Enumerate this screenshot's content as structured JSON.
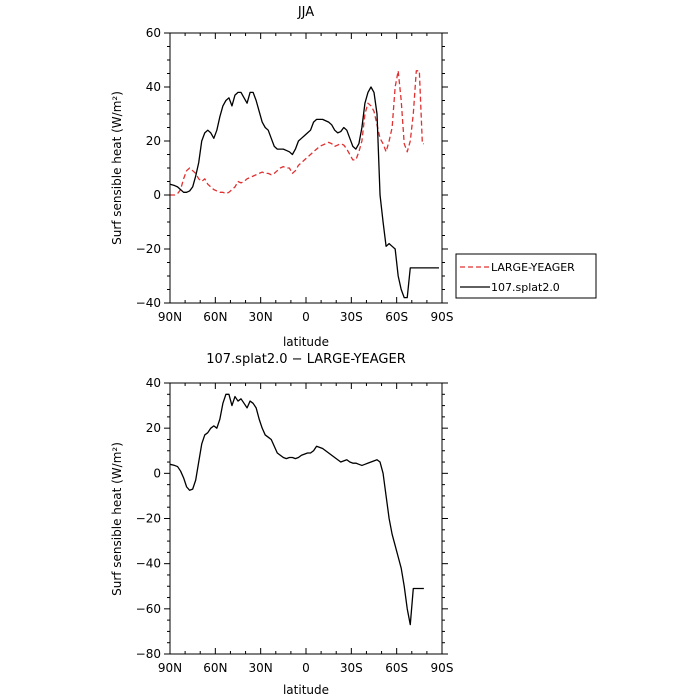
{
  "chart_data": [
    {
      "type": "line",
      "title": "JJA",
      "xlabel": "latitude",
      "ylabel": "Surf sensible heat (W/m²)",
      "xlim": [
        -90,
        90
      ],
      "ylim": [
        -40,
        60
      ],
      "xticks": [
        -90,
        -60,
        -30,
        0,
        30,
        60,
        90
      ],
      "xtick_labels": [
        "90N",
        "60N",
        "30N",
        "0",
        "30S",
        "60S",
        "90S"
      ],
      "yticks": [
        -40,
        -20,
        0,
        20,
        40,
        60
      ],
      "ytick_labels": [
        "−40",
        "−20",
        "0",
        "20",
        "40",
        "60"
      ],
      "legend": {
        "placement": "right"
      },
      "series": [
        {
          "name": "LARGE-YEAGER",
          "color": "#e03030",
          "dash": "dashed",
          "x": [
            -90,
            -87,
            -85,
            -83,
            -81,
            -79,
            -77,
            -75,
            -73,
            -71,
            -69,
            -67,
            -65,
            -63,
            -61,
            -59,
            -57,
            -55,
            -53,
            -51,
            -49,
            -47,
            -45,
            -43,
            -41,
            -39,
            -37,
            -35,
            -33,
            -31,
            -29,
            -27,
            -25,
            -23,
            -21,
            -19,
            -17,
            -15,
            -13,
            -11,
            -9,
            -7,
            -5,
            -3,
            -1,
            1,
            3,
            5,
            7,
            9,
            11,
            13,
            15,
            17,
            19,
            21,
            23,
            25,
            27,
            29,
            31,
            33,
            35,
            37,
            39,
            41,
            43,
            45,
            47,
            49,
            51,
            53,
            55,
            57,
            59,
            61,
            63,
            65,
            67,
            69,
            71,
            73,
            75,
            77,
            78
          ],
          "y": [
            0,
            0,
            0.5,
            2,
            6,
            9,
            10,
            9,
            8,
            6,
            5,
            6,
            4,
            3,
            2,
            1.5,
            1,
            1,
            0.5,
            1,
            2,
            3,
            5,
            4.5,
            5,
            6,
            6.5,
            7,
            7.5,
            8,
            8.5,
            8,
            8,
            7.5,
            8,
            9,
            10,
            10.5,
            10,
            10,
            8,
            9,
            11,
            12,
            13,
            14,
            15,
            16,
            17,
            18,
            18.5,
            19,
            19.5,
            19,
            18,
            18.5,
            19,
            18.5,
            17,
            15,
            13,
            13,
            16,
            20,
            30,
            34,
            33,
            31,
            26,
            21,
            19,
            16,
            20,
            25,
            40,
            46,
            35,
            19,
            16,
            20,
            30,
            46,
            46,
            19,
            19
          ]
        },
        {
          "name": "107.splat2.0",
          "color": "#000000",
          "dash": "solid",
          "x": [
            -90,
            -87,
            -85,
            -83,
            -81,
            -79,
            -77,
            -75,
            -73,
            -71,
            -69,
            -67,
            -65,
            -63,
            -61,
            -59,
            -57,
            -55,
            -53,
            -51,
            -49,
            -47,
            -45,
            -43,
            -41,
            -39,
            -37,
            -35,
            -33,
            -31,
            -29,
            -27,
            -25,
            -23,
            -21,
            -19,
            -17,
            -15,
            -13,
            -11,
            -9,
            -7,
            -5,
            -3,
            -1,
            1,
            3,
            5,
            7,
            9,
            11,
            13,
            15,
            17,
            19,
            21,
            23,
            25,
            27,
            29,
            31,
            33,
            35,
            37,
            39,
            41,
            43,
            45,
            47,
            49,
            51,
            53,
            55,
            57,
            59,
            61,
            63,
            65,
            67,
            69,
            71,
            73,
            75,
            77,
            79,
            81,
            83,
            85,
            87,
            88
          ],
          "y": [
            4,
            3.5,
            3,
            2,
            1,
            1,
            1.5,
            3,
            7,
            12,
            20,
            23,
            24,
            23,
            21,
            24,
            29,
            33,
            35,
            36,
            33,
            37,
            38,
            38,
            36,
            34,
            38,
            38,
            35,
            31,
            27,
            25,
            24,
            21,
            18,
            17,
            17,
            17,
            16.5,
            16,
            15,
            17,
            20,
            21,
            22,
            23,
            24,
            27,
            28,
            28,
            28,
            27.5,
            27,
            26,
            24,
            23,
            23.5,
            25,
            24,
            21,
            18,
            17,
            19,
            25,
            34,
            38,
            40,
            38,
            30,
            0,
            -10,
            -19,
            -18,
            -19,
            -20,
            -30,
            -35,
            -38,
            -38,
            -27,
            -27,
            -27,
            -27,
            -27,
            -27,
            -27,
            -27,
            -27,
            -27,
            -27
          ]
        }
      ]
    },
    {
      "type": "line",
      "title": "107.splat2.0 − LARGE-YEAGER",
      "xlabel": "latitude",
      "ylabel": "Surf sensible heat (W/m²)",
      "xlim": [
        -90,
        90
      ],
      "ylim": [
        -80,
        40
      ],
      "xticks": [
        -90,
        -60,
        -30,
        0,
        30,
        60,
        90
      ],
      "xtick_labels": [
        "90N",
        "60N",
        "30N",
        "0",
        "30S",
        "60S",
        "90S"
      ],
      "yticks": [
        -80,
        -60,
        -40,
        -20,
        0,
        20,
        40
      ],
      "ytick_labels": [
        "−80",
        "−60",
        "−40",
        "−20",
        "0",
        "20",
        "40"
      ],
      "series": [
        {
          "color": "#000000",
          "dash": "solid",
          "x": [
            -90,
            -87,
            -85,
            -83,
            -81,
            -79,
            -77,
            -75,
            -73,
            -71,
            -69,
            -67,
            -65,
            -63,
            -61,
            -59,
            -57,
            -55,
            -53,
            -51,
            -49,
            -47,
            -45,
            -43,
            -41,
            -39,
            -37,
            -35,
            -33,
            -31,
            -29,
            -27,
            -25,
            -23,
            -21,
            -19,
            -17,
            -15,
            -13,
            -11,
            -9,
            -7,
            -5,
            -3,
            -1,
            1,
            3,
            5,
            7,
            9,
            11,
            13,
            15,
            17,
            19,
            21,
            23,
            25,
            27,
            29,
            31,
            33,
            35,
            37,
            39,
            41,
            43,
            45,
            47,
            49,
            51,
            53,
            55,
            57,
            59,
            61,
            63,
            65,
            67,
            69,
            71,
            73,
            75,
            77,
            78
          ],
          "y": [
            4,
            3.5,
            3,
            1,
            -2,
            -6,
            -7.5,
            -7,
            -3,
            5,
            13,
            17,
            18,
            20,
            21,
            20,
            24,
            31,
            35,
            35,
            30,
            34,
            32,
            33,
            31,
            29,
            32,
            31,
            29,
            24,
            20,
            17,
            16,
            15,
            12,
            9,
            8,
            7,
            6.5,
            7,
            7,
            6.5,
            7,
            8,
            8.5,
            9,
            9,
            10,
            12,
            11.5,
            11,
            10,
            9,
            8,
            7,
            6,
            5,
            5.5,
            6,
            5,
            4.5,
            4.5,
            4,
            3.5,
            4,
            4.5,
            5,
            5.5,
            6,
            5,
            0,
            -10,
            -20,
            -27,
            -32,
            -37,
            -42,
            -50,
            -60,
            -67,
            -51,
            -51,
            -51,
            -51,
            -51
          ]
        }
      ]
    }
  ]
}
